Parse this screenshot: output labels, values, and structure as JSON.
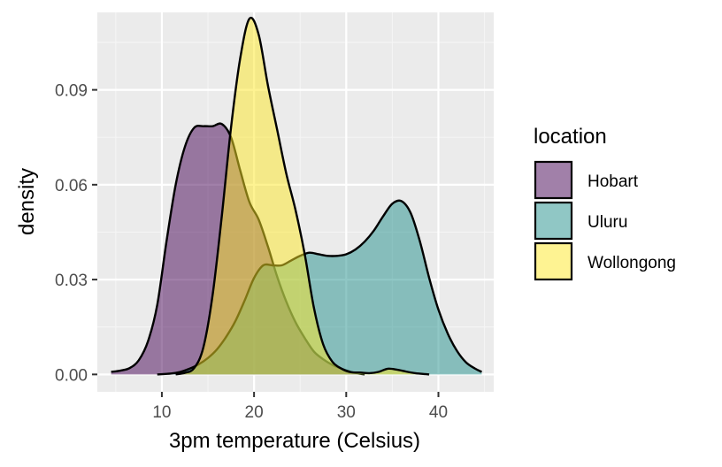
{
  "chart_data": {
    "type": "area",
    "title": "",
    "xlabel": "3pm temperature (Celsius)",
    "ylabel": "density",
    "xlim": [
      3,
      46
    ],
    "ylim": [
      -0.0055,
      0.1145
    ],
    "x_ticks": [
      10,
      20,
      30,
      40
    ],
    "x_tick_labels": [
      "10",
      "20",
      "30",
      "40"
    ],
    "y_ticks": [
      0.0,
      0.03,
      0.06,
      0.09
    ],
    "y_tick_labels": [
      "0.00",
      "0.03",
      "0.06",
      "0.09"
    ],
    "grid": true,
    "legend": {
      "title": "location",
      "position": "right"
    },
    "series": [
      {
        "name": "Hobart",
        "color": "#440154",
        "points": [
          [
            4.5,
            0.0008
          ],
          [
            5.5,
            0.0012
          ],
          [
            6.5,
            0.002
          ],
          [
            7.5,
            0.0045
          ],
          [
            8.5,
            0.0105
          ],
          [
            9.5,
            0.022
          ],
          [
            10.5,
            0.042
          ],
          [
            11.5,
            0.06
          ],
          [
            12.5,
            0.072
          ],
          [
            13.5,
            0.078
          ],
          [
            14.5,
            0.0785
          ],
          [
            15.5,
            0.0785
          ],
          [
            16.5,
            0.0792
          ],
          [
            17.5,
            0.075
          ],
          [
            18.5,
            0.0645
          ],
          [
            19.5,
            0.0545
          ],
          [
            20.5,
            0.049
          ],
          [
            21.5,
            0.0405
          ],
          [
            22.5,
            0.031
          ],
          [
            23.5,
            0.023
          ],
          [
            24.5,
            0.0165
          ],
          [
            25.5,
            0.0115
          ],
          [
            26.5,
            0.0072
          ],
          [
            27.5,
            0.0048
          ],
          [
            28.5,
            0.003
          ],
          [
            29.5,
            0.0018
          ],
          [
            30.5,
            0.0008
          ],
          [
            31.5,
            0.0002
          ],
          [
            32,
            0.0
          ]
        ]
      },
      {
        "name": "Uluru",
        "color": "#21908C",
        "points": [
          [
            9.5,
            0.0
          ],
          [
            11,
            0.0003
          ],
          [
            12,
            0.0008
          ],
          [
            13,
            0.0018
          ],
          [
            14,
            0.0032
          ],
          [
            15,
            0.0052
          ],
          [
            16,
            0.008
          ],
          [
            17,
            0.012
          ],
          [
            18,
            0.017
          ],
          [
            19,
            0.0235
          ],
          [
            20,
            0.0305
          ],
          [
            21,
            0.0345
          ],
          [
            22,
            0.0345
          ],
          [
            23,
            0.0345
          ],
          [
            24,
            0.036
          ],
          [
            25,
            0.0375
          ],
          [
            26,
            0.0385
          ],
          [
            27,
            0.038
          ],
          [
            28,
            0.0375
          ],
          [
            29,
            0.0375
          ],
          [
            30,
            0.038
          ],
          [
            31,
            0.0395
          ],
          [
            32,
            0.042
          ],
          [
            33,
            0.0455
          ],
          [
            34,
            0.05
          ],
          [
            35,
            0.054
          ],
          [
            36,
            0.0548
          ],
          [
            37,
            0.051
          ],
          [
            38,
            0.042
          ],
          [
            39,
            0.0305
          ],
          [
            40,
            0.0205
          ],
          [
            41,
            0.013
          ],
          [
            42,
            0.0075
          ],
          [
            43,
            0.0038
          ],
          [
            44,
            0.0018
          ],
          [
            44.7,
            0.0008
          ]
        ]
      },
      {
        "name": "Wollongong",
        "color": "#FDE725",
        "points": [
          [
            11.5,
            0.0
          ],
          [
            12.5,
            0.0005
          ],
          [
            13.5,
            0.002
          ],
          [
            14.5,
            0.0085
          ],
          [
            15.5,
            0.025
          ],
          [
            16.5,
            0.05
          ],
          [
            17.5,
            0.078
          ],
          [
            18.5,
            0.1
          ],
          [
            19.5,
            0.1125
          ],
          [
            20.5,
            0.1075
          ],
          [
            21.5,
            0.0915
          ],
          [
            22.5,
            0.0775
          ],
          [
            23.5,
            0.0635
          ],
          [
            24.5,
            0.052
          ],
          [
            25.5,
            0.038
          ],
          [
            26.5,
            0.021
          ],
          [
            27.5,
            0.0095
          ],
          [
            28.5,
            0.004
          ],
          [
            29.5,
            0.0018
          ],
          [
            30.5,
            0.0007
          ],
          [
            31.5,
            0.0006
          ],
          [
            32.5,
            0.0004
          ],
          [
            33.5,
            0.0008
          ],
          [
            34.5,
            0.0018
          ],
          [
            35.5,
            0.0015
          ],
          [
            36.5,
            0.0009
          ],
          [
            37.5,
            0.0004
          ],
          [
            38.5,
            0.0001
          ],
          [
            39,
            0.0
          ]
        ]
      }
    ]
  },
  "colors": {
    "panel_background": "#EBEBEB",
    "grid_major": "#FFFFFF",
    "grid_minor": "#F5F5F5",
    "outline": "#000000"
  }
}
